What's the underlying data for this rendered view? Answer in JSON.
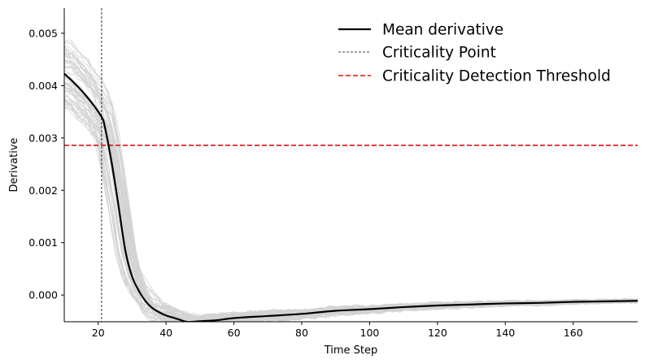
{
  "chart_data": {
    "type": "line",
    "xlabel": "Time Step",
    "ylabel": "Derivative",
    "xlim": [
      10,
      179
    ],
    "ylim": [
      -0.00051,
      0.00548
    ],
    "x_ticks": [
      20,
      40,
      60,
      80,
      100,
      120,
      140,
      160
    ],
    "y_ticks": [
      0.0,
      0.001,
      0.002,
      0.003,
      0.004,
      0.005
    ],
    "x_tick_labels": [
      "20",
      "40",
      "60",
      "80",
      "100",
      "120",
      "140",
      "160"
    ],
    "y_tick_labels": [
      "0.000",
      "0.001",
      "0.002",
      "0.003",
      "0.004",
      "0.005"
    ],
    "grid": false,
    "legend_position": "top-right",
    "series": [
      {
        "name": "Mean derivative",
        "color": "#000000",
        "style": "solid",
        "points": [
          [
            10,
            0.00423
          ],
          [
            14,
            0.00398
          ],
          [
            18,
            0.00368
          ],
          [
            21,
            0.0034
          ],
          [
            22,
            0.0032
          ],
          [
            24,
            0.00252
          ],
          [
            26,
            0.0017
          ],
          [
            28,
            0.00085
          ],
          [
            30,
            0.00035
          ],
          [
            32,
            8e-05
          ],
          [
            34,
            -0.00012
          ],
          [
            36,
            -0.00025
          ],
          [
            38,
            -0.00033
          ],
          [
            40,
            -0.00039
          ],
          [
            42,
            -0.00043
          ],
          [
            44,
            -0.00047
          ],
          [
            46,
            -0.00051
          ],
          [
            48,
            -0.00051
          ],
          [
            50,
            -0.0005
          ],
          [
            55,
            -0.00048
          ],
          [
            60,
            -0.00044
          ],
          [
            70,
            -0.0004
          ],
          [
            80,
            -0.00036
          ],
          [
            90,
            -0.0003
          ],
          [
            100,
            -0.00027
          ],
          [
            110,
            -0.00023
          ],
          [
            120,
            -0.0002
          ],
          [
            130,
            -0.00018
          ],
          [
            140,
            -0.00016
          ],
          [
            150,
            -0.00015
          ],
          [
            160,
            -0.00013
          ],
          [
            170,
            -0.00012
          ],
          [
            179,
            -0.00011
          ]
        ]
      },
      {
        "name": "Criticality Point",
        "color": "#000000",
        "style": "dashed-vertical",
        "x": 21
      },
      {
        "name": "Criticality Detection Threshold",
        "color": "#dd1111",
        "style": "dashed-horizontal",
        "y": 0.00286
      }
    ],
    "background_traces": {
      "color": "#d3d3d3",
      "count": 60,
      "description": "individual run derivatives (gray, unlabeled)"
    }
  }
}
